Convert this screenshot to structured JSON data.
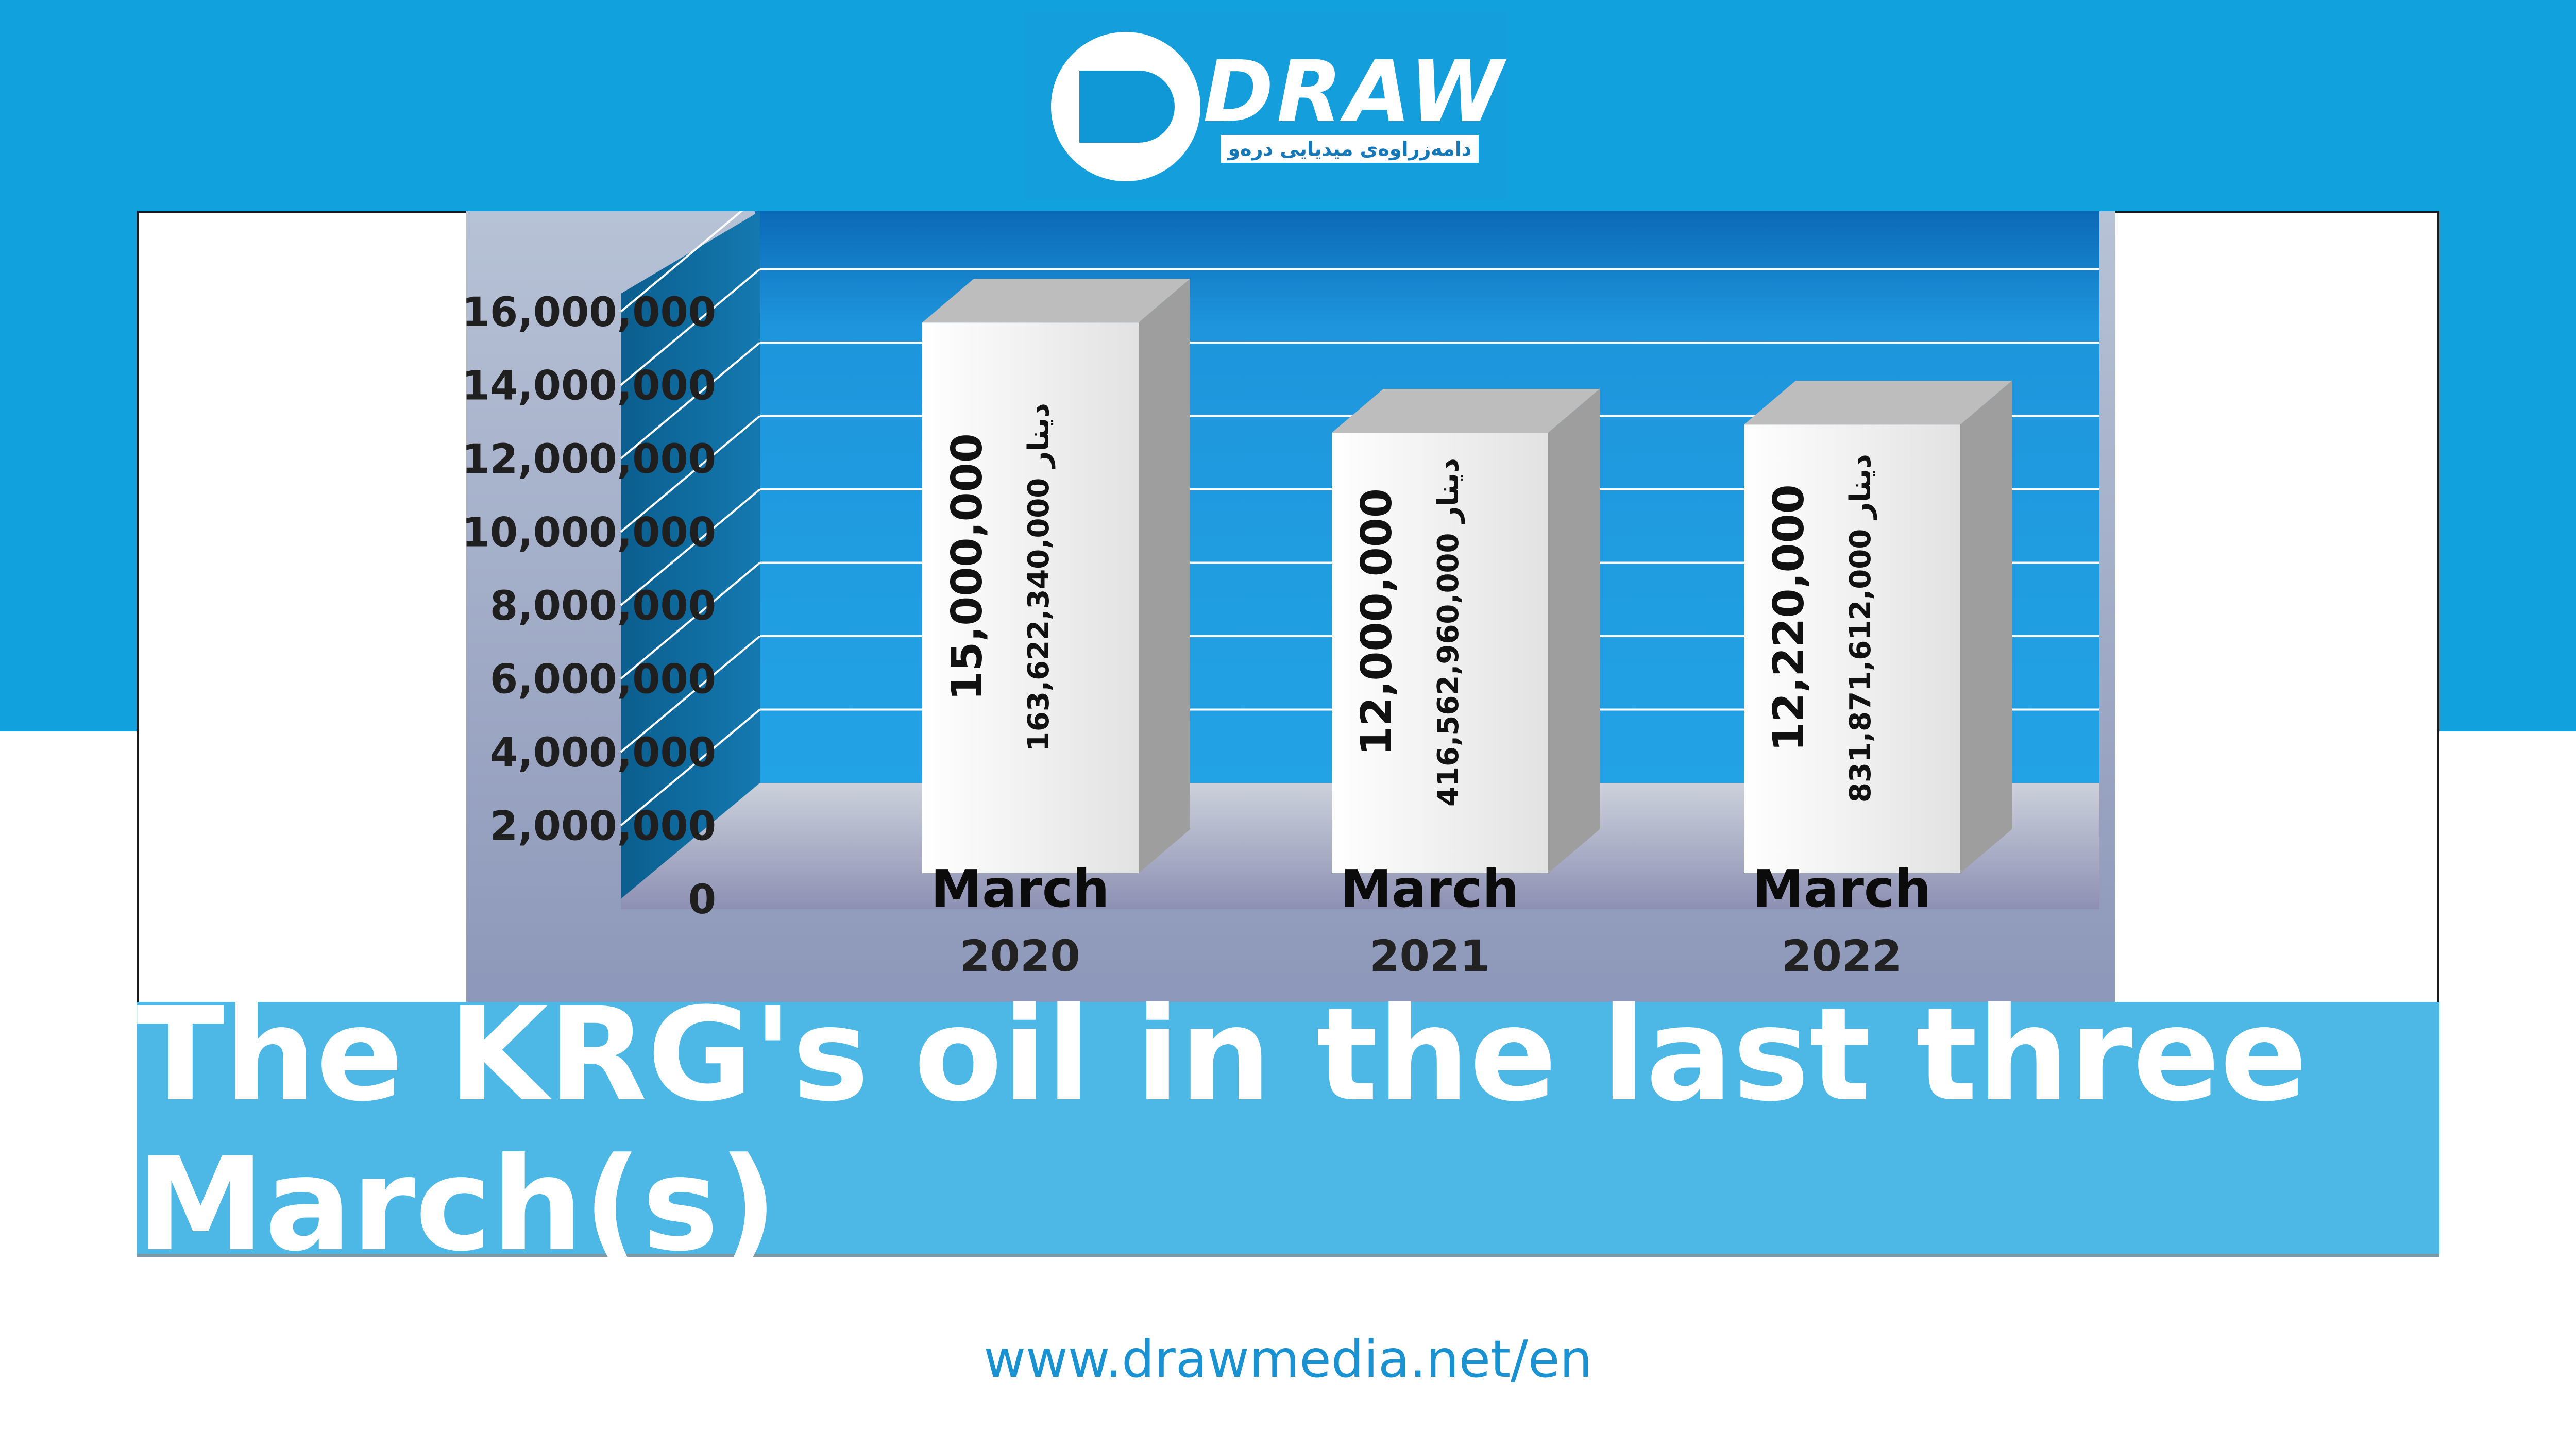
{
  "logo": {
    "word": "DRAW",
    "tagline": "دامەزراوەی میدیایی درەو"
  },
  "banner": {
    "title": "The KRG's oil in the last three March(s)"
  },
  "footer": {
    "url": "www.drawmedia.net/en"
  },
  "colors": {
    "background_top": "#11a2de",
    "banner": "#4db7e6",
    "chart_back": "#1d8fd4",
    "bar_face": "#f2f2f2"
  },
  "chart_data": {
    "type": "bar",
    "categories": [
      "March\n2020",
      "March\n2021",
      "March\n2022"
    ],
    "category_lines": [
      [
        "March",
        "2020"
      ],
      [
        "March",
        "2021"
      ],
      [
        "March",
        "2022"
      ]
    ],
    "values": [
      15000000,
      12000000,
      12220000
    ],
    "value_labels": [
      "15,000,000",
      "12,000,000",
      "12,220,000"
    ],
    "secondary_labels": [
      "163,622,340,000 دینار",
      "416,562,960,000 دینار",
      "831,871,612,000 دینار"
    ],
    "yticks": [
      "0",
      "2,000,000",
      "4,000,000",
      "6,000,000",
      "8,000,000",
      "10,000,000",
      "12,000,000",
      "14,000,000",
      "16,000,000"
    ],
    "ylim": [
      0,
      16000000
    ],
    "grid": true,
    "style": "3d"
  }
}
